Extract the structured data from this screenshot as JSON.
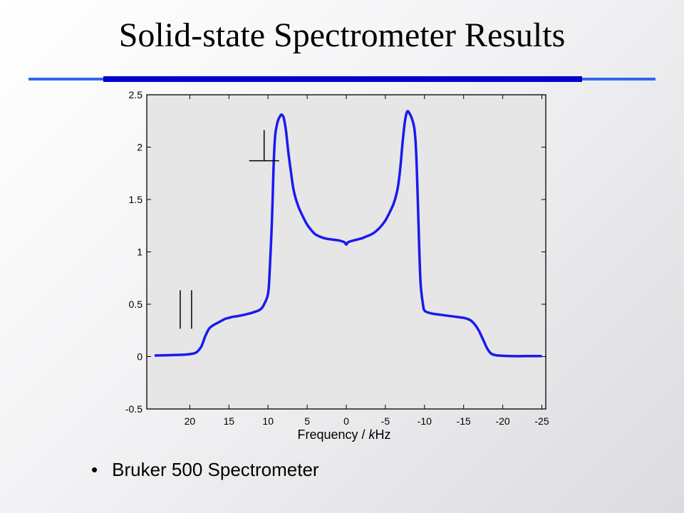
{
  "slide": {
    "title": "Solid-state Spectrometer Results",
    "bullets": [
      "Bruker 500 Spectrometer"
    ],
    "rule_colors": {
      "thin": "#3366ee",
      "thick": "#0000cc"
    }
  },
  "chart_data": {
    "type": "line",
    "title": "",
    "xlabel_prefix": "Frequency / ",
    "xlabel_italic": "k",
    "xlabel_suffix": "Hz",
    "ylabel": "",
    "xlim": [
      25.5,
      -25.5
    ],
    "ylim": [
      -0.5,
      2.5
    ],
    "x_ticks": [
      20,
      15,
      10,
      5,
      0,
      -5,
      -10,
      -15,
      -20,
      -25
    ],
    "x_tick_labels": [
      "20",
      "15",
      "10",
      "5",
      "0",
      "-5",
      "-10",
      "-15",
      "-20",
      "-25"
    ],
    "y_ticks": [
      -0.5,
      0,
      0.5,
      1,
      1.5,
      2,
      2.5
    ],
    "y_tick_labels": [
      "-0.5",
      "0",
      "0.5",
      "1",
      "1.5",
      "2",
      "2.5"
    ],
    "grid": false,
    "series": [
      {
        "color": "#1a1aee",
        "x": [
          24.5,
          22,
          20.5,
          19.5,
          19,
          18.5,
          18,
          17.5,
          17,
          16.5,
          16,
          15.5,
          15,
          14.5,
          14,
          13,
          12,
          11,
          10.5,
          10,
          9.8,
          9.5,
          9.3,
          9.1,
          8.9,
          8.7,
          8.5,
          8.3,
          8,
          7.7,
          7.4,
          7.1,
          6.8,
          6.5,
          6.2,
          6,
          5.5,
          5,
          4.5,
          4,
          3.5,
          3,
          2.5,
          2,
          1.5,
          1,
          0.5,
          0.2,
          0,
          -0.2,
          -0.5,
          -1,
          -1.5,
          -2,
          -2.5,
          -3,
          -3.5,
          -4,
          -4.5,
          -5,
          -5.5,
          -6,
          -6.3,
          -6.6,
          -6.9,
          -7.2,
          -7.5,
          -7.8,
          -8.1,
          -8.4,
          -8.7,
          -8.9,
          -9.1,
          -9.3,
          -9.5,
          -9.8,
          -10,
          -10.5,
          -11,
          -12,
          -13,
          -14,
          -14.5,
          -15,
          -15.5,
          -16,
          -16.5,
          -17,
          -17.5,
          -18,
          -18.5,
          -19,
          -19.5,
          -21,
          -23,
          -25
        ],
        "y": [
          0.01,
          0.015,
          0.02,
          0.03,
          0.05,
          0.1,
          0.2,
          0.27,
          0.3,
          0.32,
          0.34,
          0.36,
          0.37,
          0.38,
          0.385,
          0.4,
          0.42,
          0.45,
          0.5,
          0.6,
          0.8,
          1.3,
          1.8,
          2.1,
          2.2,
          2.26,
          2.29,
          2.31,
          2.28,
          2.15,
          1.95,
          1.78,
          1.62,
          1.52,
          1.45,
          1.41,
          1.33,
          1.26,
          1.21,
          1.17,
          1.15,
          1.135,
          1.125,
          1.12,
          1.115,
          1.11,
          1.1,
          1.09,
          1.07,
          1.09,
          1.1,
          1.11,
          1.12,
          1.13,
          1.145,
          1.16,
          1.18,
          1.21,
          1.25,
          1.3,
          1.37,
          1.45,
          1.52,
          1.62,
          1.8,
          2.05,
          2.25,
          2.34,
          2.32,
          2.27,
          2.18,
          2.0,
          1.6,
          1.1,
          0.7,
          0.5,
          0.44,
          0.42,
          0.41,
          0.4,
          0.39,
          0.38,
          0.375,
          0.37,
          0.36,
          0.34,
          0.3,
          0.24,
          0.16,
          0.08,
          0.03,
          0.015,
          0.01,
          0.005,
          0.005,
          0.005
        ]
      }
    ],
    "annotations": [
      {
        "symbol": "parallel",
        "x": 20.5,
        "y": 0.45
      },
      {
        "symbol": "perpendicular",
        "x": 10.5,
        "y": 1.87
      }
    ]
  }
}
